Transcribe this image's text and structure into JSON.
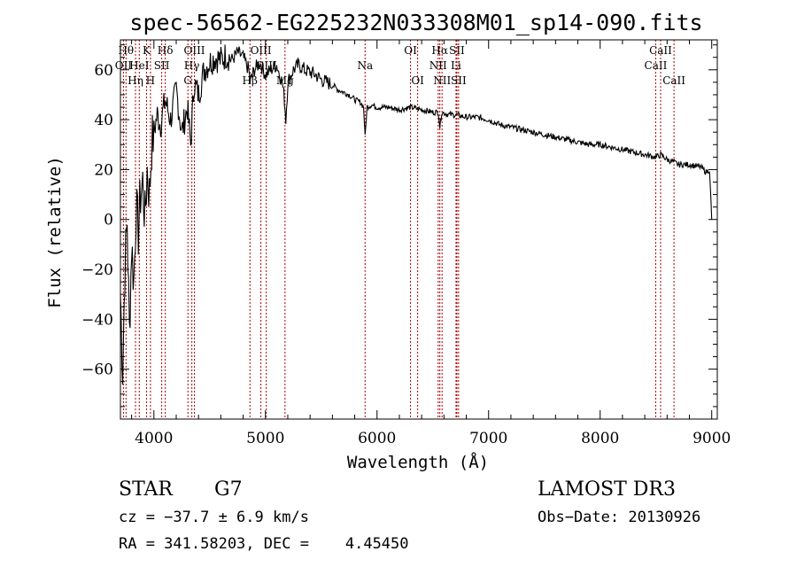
{
  "chart_data": {
    "type": "line",
    "title": "spec-56562-EG225232N033308M01_sp14-090.fits",
    "xlabel": "Wavelength (Å)",
    "ylabel": "Flux (relative)",
    "xlim": [
      3700,
      9050
    ],
    "ylim": [
      -80,
      72
    ],
    "x_ticks": [
      4000,
      5000,
      6000,
      7000,
      8000,
      9000
    ],
    "x_tick_labels": [
      "4000",
      "5000",
      "6000",
      "7000",
      "8000",
      "9000"
    ],
    "y_ticks": [
      -60,
      -40,
      -20,
      0,
      20,
      40,
      60
    ],
    "y_tick_labels": [
      "−60",
      "−40",
      "−20",
      "0",
      "20",
      "40",
      "60"
    ],
    "series": [
      {
        "name": "flux",
        "x": [
          3700,
          3720,
          3740,
          3760,
          3780,
          3800,
          3820,
          3840,
          3860,
          3880,
          3900,
          3920,
          3940,
          3960,
          3980,
          4000,
          4030,
          4060,
          4100,
          4150,
          4200,
          4250,
          4300,
          4330,
          4360,
          4400,
          4450,
          4500,
          4550,
          4600,
          4650,
          4700,
          4750,
          4800,
          4850,
          4861,
          4900,
          4950,
          5000,
          5050,
          5100,
          5150,
          5170,
          5183,
          5200,
          5250,
          5300,
          5350,
          5400,
          5450,
          5500,
          5550,
          5600,
          5650,
          5700,
          5750,
          5800,
          5850,
          5880,
          5893,
          5910,
          5950,
          6000,
          6100,
          6200,
          6300,
          6400,
          6500,
          6550,
          6563,
          6580,
          6650,
          6700,
          6800,
          6900,
          7000,
          7100,
          7200,
          7300,
          7400,
          7500,
          7600,
          7700,
          7800,
          7900,
          8000,
          8100,
          8200,
          8300,
          8400,
          8498,
          8542,
          8600,
          8662,
          8700,
          8800,
          8900,
          8950,
          8980,
          9000
        ],
        "y": [
          -30,
          -60,
          -20,
          0,
          -45,
          -10,
          -25,
          5,
          -5,
          10,
          15,
          0,
          20,
          10,
          30,
          35,
          42,
          38,
          48,
          40,
          52,
          35,
          45,
          30,
          55,
          50,
          60,
          63,
          65,
          64,
          66,
          64,
          67,
          65,
          60,
          55,
          60,
          63,
          58,
          60,
          62,
          55,
          48,
          40,
          55,
          60,
          62,
          60,
          59,
          58,
          56,
          55,
          54,
          52,
          51,
          50,
          48,
          47,
          45,
          33,
          45,
          46,
          45,
          45,
          44,
          45,
          44,
          43,
          43,
          37,
          43,
          42,
          42,
          41,
          41,
          40,
          38,
          37,
          36,
          35,
          34,
          33,
          32,
          31,
          30,
          30,
          29,
          28,
          27,
          26,
          25,
          26,
          24,
          23,
          22,
          22,
          21,
          19,
          20,
          0
        ]
      }
    ],
    "lines": [
      {
        "wave": 3727,
        "label": "OII",
        "tier": 1
      },
      {
        "wave": 3750,
        "label": "Hθ",
        "tier": 0
      },
      {
        "wave": 3835,
        "label": "Hη",
        "tier": 2
      },
      {
        "wave": 3869,
        "label": "HeI",
        "tier": 1
      },
      {
        "wave": 3934,
        "label": "K",
        "tier": 0
      },
      {
        "wave": 3969,
        "label": "H",
        "tier": 2
      },
      {
        "wave": 4070,
        "label": "SII",
        "tier": 1
      },
      {
        "wave": 4102,
        "label": "Hδ",
        "tier": 0
      },
      {
        "wave": 4305,
        "label": "G",
        "tier": 2
      },
      {
        "wave": 4340,
        "label": "Hγ",
        "tier": 1
      },
      {
        "wave": 4363,
        "label": "OIII",
        "tier": 0
      },
      {
        "wave": 4861,
        "label": "Hβ",
        "tier": 2
      },
      {
        "wave": 4959,
        "label": "OIII",
        "tier": 0
      },
      {
        "wave": 5007,
        "label": "OIII",
        "tier": 1
      },
      {
        "wave": 5175,
        "label": "Mg",
        "tier": 2
      },
      {
        "wave": 5893,
        "label": "Na",
        "tier": 1
      },
      {
        "wave": 6300,
        "label": "OI",
        "tier": 0
      },
      {
        "wave": 6364,
        "label": "OI",
        "tier": 2
      },
      {
        "wave": 6548,
        "label": "NII",
        "tier": 1
      },
      {
        "wave": 6563,
        "label": "Hα",
        "tier": 0
      },
      {
        "wave": 6583,
        "label": "NII",
        "tier": 2
      },
      {
        "wave": 6708,
        "label": "Li",
        "tier": 1
      },
      {
        "wave": 6716,
        "label": "SII",
        "tier": 0
      },
      {
        "wave": 6731,
        "label": "SII",
        "tier": 2
      },
      {
        "wave": 8498,
        "label": "CaII",
        "tier": 1
      },
      {
        "wave": 8542,
        "label": "CaII",
        "tier": 0
      },
      {
        "wave": 8662,
        "label": "CaII",
        "tier": 2
      }
    ]
  },
  "info": {
    "class": "STAR",
    "subclass": "G7",
    "survey": "LAMOST DR3",
    "cz": "cz = −37.7 ± 6.9 km/s",
    "obs_date": "Obs−Date: 20130926",
    "radec": "RA = 341.58203, DEC =    4.45450"
  }
}
